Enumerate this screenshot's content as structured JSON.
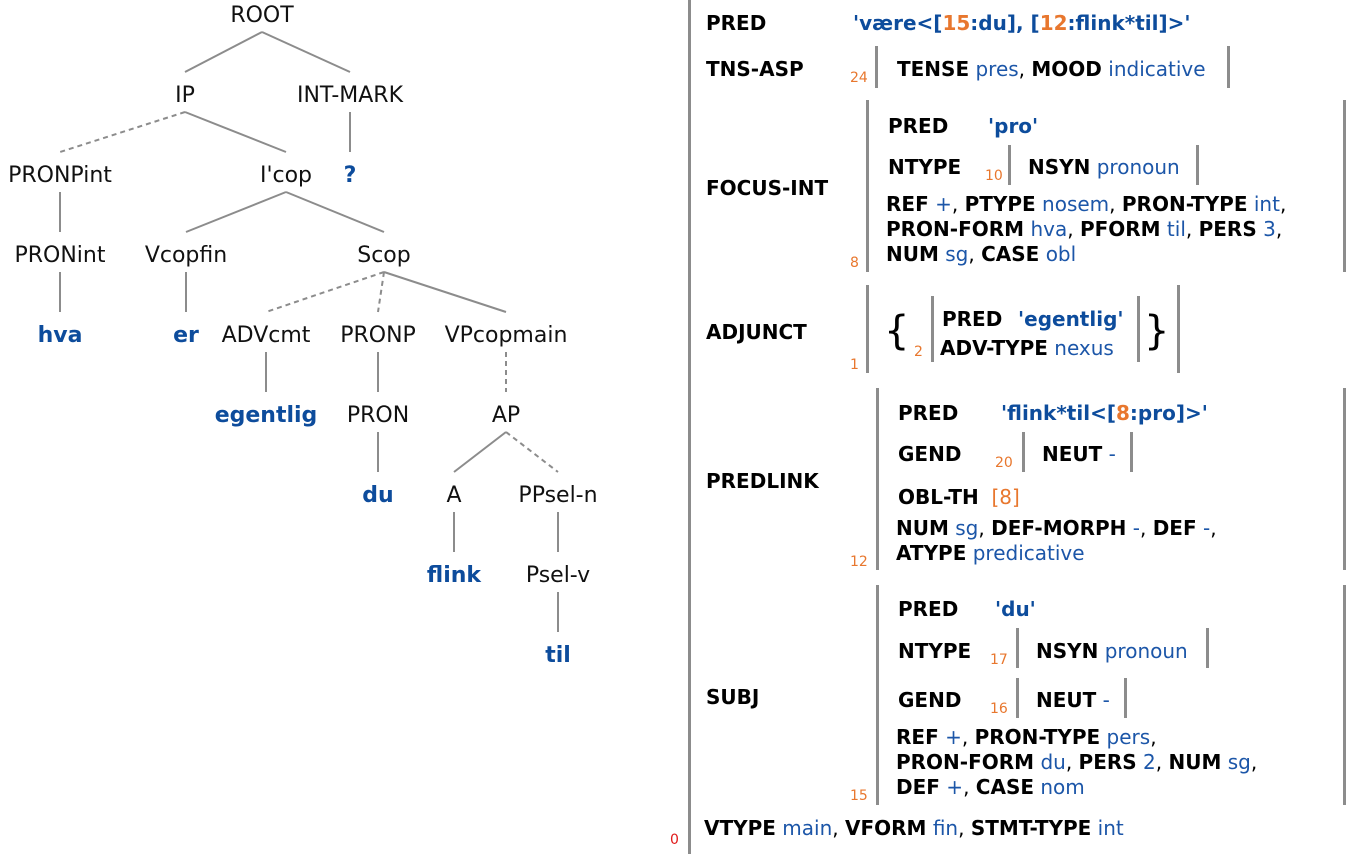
{
  "tree": {
    "nodes": [
      {
        "id": "root",
        "label": "ROOT",
        "kind": "cat"
      },
      {
        "id": "ip",
        "label": "IP",
        "kind": "cat"
      },
      {
        "id": "intmark",
        "label": "INT-MARK",
        "kind": "cat"
      },
      {
        "id": "qmark",
        "label": "?",
        "kind": "word"
      },
      {
        "id": "pronpint",
        "label": "PRONPint",
        "kind": "cat"
      },
      {
        "id": "icop",
        "label": "I'cop",
        "kind": "cat"
      },
      {
        "id": "pronint",
        "label": "PRONint",
        "kind": "cat"
      },
      {
        "id": "hva",
        "label": "hva",
        "kind": "word"
      },
      {
        "id": "vcopfin",
        "label": "Vcopfin",
        "kind": "cat"
      },
      {
        "id": "er",
        "label": "er",
        "kind": "word"
      },
      {
        "id": "scop",
        "label": "Scop",
        "kind": "cat"
      },
      {
        "id": "advcmt",
        "label": "ADVcmt",
        "kind": "cat"
      },
      {
        "id": "egentlig",
        "label": "egentlig",
        "kind": "word"
      },
      {
        "id": "pronp",
        "label": "PRONP",
        "kind": "cat"
      },
      {
        "id": "pron",
        "label": "PRON",
        "kind": "cat"
      },
      {
        "id": "du",
        "label": "du",
        "kind": "word"
      },
      {
        "id": "vpcopmain",
        "label": "VPcopmain",
        "kind": "cat"
      },
      {
        "id": "ap",
        "label": "AP",
        "kind": "cat"
      },
      {
        "id": "a",
        "label": "A",
        "kind": "cat"
      },
      {
        "id": "flink",
        "label": "flink",
        "kind": "word"
      },
      {
        "id": "ppseln",
        "label": "PPsel-n",
        "kind": "cat"
      },
      {
        "id": "pselv",
        "label": "Psel-v",
        "kind": "cat"
      },
      {
        "id": "til",
        "label": "til",
        "kind": "word"
      }
    ],
    "edges": [
      [
        "root",
        "ip",
        "solid"
      ],
      [
        "root",
        "intmark",
        "solid"
      ],
      [
        "intmark",
        "qmark",
        "solid"
      ],
      [
        "ip",
        "pronpint",
        "dashed"
      ],
      [
        "ip",
        "icop",
        "solid"
      ],
      [
        "pronpint",
        "pronint",
        "solid"
      ],
      [
        "pronint",
        "hva",
        "solid"
      ],
      [
        "icop",
        "vcopfin",
        "solid"
      ],
      [
        "icop",
        "scop",
        "solid"
      ],
      [
        "vcopfin",
        "er",
        "solid"
      ],
      [
        "scop",
        "advcmt",
        "dashed"
      ],
      [
        "scop",
        "pronp",
        "dashed"
      ],
      [
        "scop",
        "vpcopmain",
        "solid"
      ],
      [
        "advcmt",
        "egentlig",
        "solid"
      ],
      [
        "pronp",
        "pron",
        "solid"
      ],
      [
        "pron",
        "du",
        "solid"
      ],
      [
        "vpcopmain",
        "ap",
        "dashed"
      ],
      [
        "ap",
        "a",
        "solid"
      ],
      [
        "ap",
        "ppseln",
        "dashed"
      ],
      [
        "a",
        "flink",
        "solid"
      ],
      [
        "ppseln",
        "pselv",
        "solid"
      ],
      [
        "pselv",
        "til",
        "solid"
      ]
    ]
  },
  "fstructure": {
    "outer_index": "0",
    "pred": {
      "attr": "PRED",
      "value_pre": "'være<[",
      "ref1": "15",
      "mid1": ":du], [",
      "ref2": "12",
      "post": ":flink*til]>'"
    },
    "tns_asp": {
      "attr": "TNS-ASP",
      "index": "24",
      "tense_attr": "TENSE",
      "tense_val": "pres",
      "sep": ",",
      "mood_attr": "MOOD",
      "mood_val": "indicative"
    },
    "focus_int": {
      "attr": "FOCUS-INT",
      "index": "8",
      "pred_attr": "PRED",
      "pred_val": "'pro'",
      "ntype_attr": "NTYPE",
      "ntype_index": "10",
      "nsyn_attr": "NSYN",
      "nsyn_val": "pronoun",
      "line1": {
        "ref": "REF",
        "ref_v": "+",
        "ptype": "PTYPE",
        "ptype_v": "nosem",
        "pt": "PRON-TYPE",
        "pt_v": "int"
      },
      "line2": {
        "pf": "PRON-FORM",
        "pf_v": "hva",
        "pform": "PFORM",
        "pform_v": "til",
        "pers": "PERS",
        "pers_v": "3"
      },
      "line3": {
        "num": "NUM",
        "num_v": "sg",
        "case": "CASE",
        "case_v": "obl"
      }
    },
    "adjunct": {
      "attr": "ADJUNCT",
      "index": "1",
      "open": "{",
      "close": "}",
      "inner_index": "2",
      "pred_attr": "PRED",
      "pred_val": "'egentlig'",
      "advtype_attr": "ADV-TYPE",
      "advtype_val": "nexus"
    },
    "predlink": {
      "attr": "PREDLINK",
      "index": "12",
      "pred_attr": "PRED",
      "pred_pre": "'flink*til<[",
      "pred_ref": "8",
      "pred_post": ":pro]>'",
      "gend_attr": "GEND",
      "gend_index": "20",
      "neut_attr": "NEUT",
      "neut_val": "-",
      "oblth_attr": "OBL-TH",
      "oblth_open": "[",
      "oblth_ref": "8",
      "oblth_close": "]",
      "line1": {
        "num": "NUM",
        "num_v": "sg",
        "dm": "DEF-MORPH",
        "dm_v": "-",
        "def": "DEF",
        "def_v": "-"
      },
      "line2": {
        "atype": "ATYPE",
        "atype_v": "predicative"
      }
    },
    "subj": {
      "attr": "SUBJ",
      "index": "15",
      "pred_attr": "PRED",
      "pred_val": "'du'",
      "ntype_attr": "NTYPE",
      "ntype_index": "17",
      "nsyn_attr": "NSYN",
      "nsyn_val": "pronoun",
      "gend_attr": "GEND",
      "gend_index": "16",
      "neut_attr": "NEUT",
      "neut_val": "-",
      "line1": {
        "ref": "REF",
        "ref_v": "+",
        "pt": "PRON-TYPE",
        "pt_v": "pers"
      },
      "line2": {
        "pf": "PRON-FORM",
        "pf_v": "du",
        "pers": "PERS",
        "pers_v": "2",
        "num": "NUM",
        "num_v": "sg"
      },
      "line3": {
        "def": "DEF",
        "def_v": "+",
        "case": "CASE",
        "case_v": "nom"
      }
    },
    "bottom": {
      "vtype": "VTYPE",
      "vtype_v": "main",
      "vform": "VFORM",
      "vform_v": "fin",
      "stmt": "STMT-TYPE",
      "stmt_v": "int"
    }
  }
}
